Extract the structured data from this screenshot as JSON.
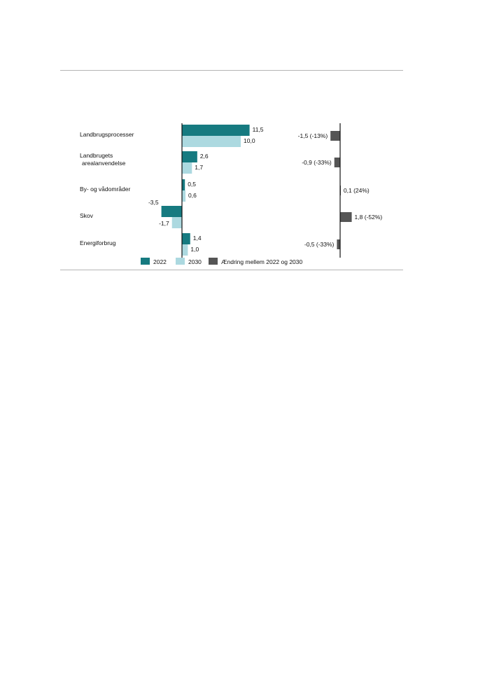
{
  "chart_data": {
    "type": "bar",
    "orientation": "horizontal",
    "categories": [
      [
        "Landbrugsprocesser"
      ],
      [
        "Landbrugets",
        "arealanvendelse"
      ],
      [
        "By- og vådområder"
      ],
      [
        "Skov"
      ],
      [
        "Energiforbrug"
      ]
    ],
    "series": [
      {
        "name": "2022",
        "color": "#167a80",
        "values": [
          11.5,
          2.6,
          0.5,
          -3.5,
          1.4
        ],
        "labels": [
          "11,5",
          "2,6",
          "0,5",
          "-3,5",
          "1,4"
        ]
      },
      {
        "name": "2030",
        "color": "#acd9e0",
        "values": [
          10.0,
          1.7,
          0.6,
          -1.7,
          1.0
        ],
        "labels": [
          "10,0",
          "1,7",
          "0,6",
          "-1,7",
          "1,0"
        ]
      }
    ],
    "change": {
      "name": "Ændring mellem 2022 og 2030",
      "color": "#555555",
      "values": [
        -1.5,
        -0.9,
        0.1,
        1.8,
        -0.5
      ],
      "labels": [
        "-1,5 (-13%)",
        "-0,9 (-33%)",
        "0,1 (24%)",
        "1,8 (-52%)",
        "-0,5 (-33%)"
      ]
    },
    "title": "",
    "xlabel": "",
    "ylabel": "",
    "legend_position": "bottom",
    "grid": false
  }
}
